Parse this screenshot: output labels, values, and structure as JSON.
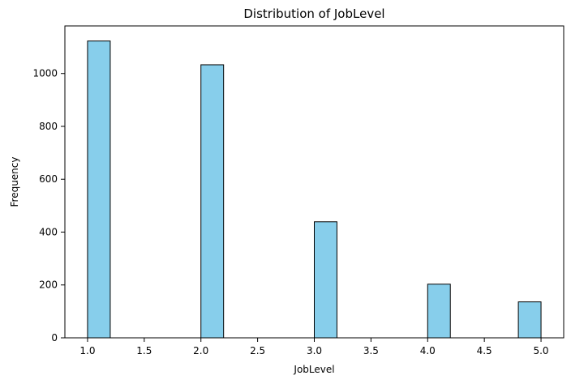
{
  "chart_data": {
    "type": "bar",
    "title": "Distribution of JobLevel",
    "xlabel": "JobLevel",
    "ylabel": "Frequency",
    "xlim": [
      0.8,
      5.2
    ],
    "ylim": [
      0,
      1180
    ],
    "bins": [
      {
        "x0": 1.0,
        "x1": 1.2,
        "value": 1123
      },
      {
        "x0": 2.0,
        "x1": 2.2,
        "value": 1033
      },
      {
        "x0": 3.0,
        "x1": 3.2,
        "value": 439
      },
      {
        "x0": 4.0,
        "x1": 4.2,
        "value": 203
      },
      {
        "x0": 4.8,
        "x1": 5.0,
        "value": 136
      }
    ],
    "x_ticks": [
      {
        "value": 1.0,
        "label": "1.0"
      },
      {
        "value": 1.5,
        "label": "1.5"
      },
      {
        "value": 2.0,
        "label": "2.0"
      },
      {
        "value": 2.5,
        "label": "2.5"
      },
      {
        "value": 3.0,
        "label": "3.0"
      },
      {
        "value": 3.5,
        "label": "3.5"
      },
      {
        "value": 4.0,
        "label": "4.0"
      },
      {
        "value": 4.5,
        "label": "4.5"
      },
      {
        "value": 5.0,
        "label": "5.0"
      }
    ],
    "y_ticks": [
      {
        "value": 0,
        "label": "0"
      },
      {
        "value": 200,
        "label": "200"
      },
      {
        "value": 400,
        "label": "400"
      },
      {
        "value": 600,
        "label": "600"
      },
      {
        "value": 800,
        "label": "800"
      },
      {
        "value": 1000,
        "label": "1000"
      }
    ],
    "grid": false,
    "colors": {
      "bar_fill": "#87ceeb",
      "bar_edge": "#000000"
    }
  }
}
